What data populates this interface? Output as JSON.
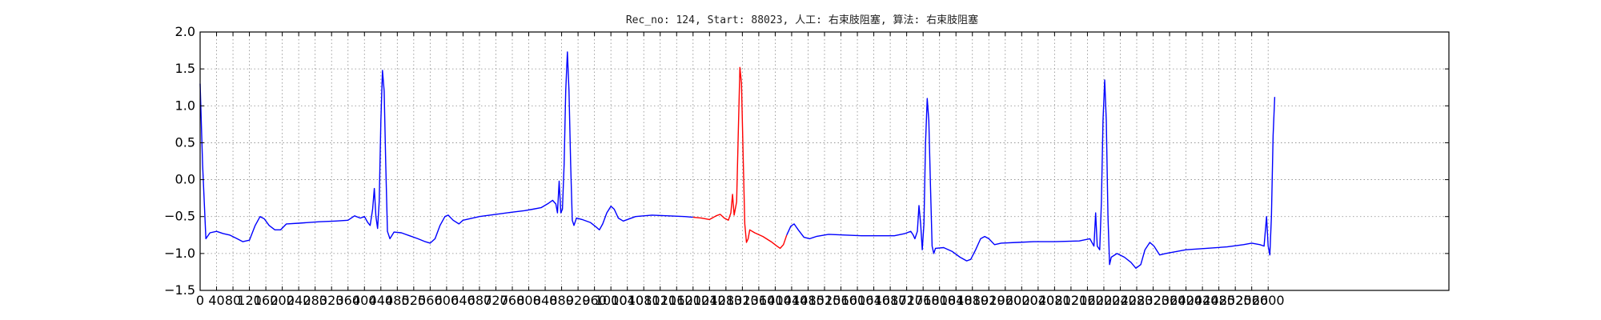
{
  "chart_data": {
    "type": "line",
    "title": "Rec_no: 124, Start: 88023, 人工: 右束肢阻塞, 算法: 右束肢阻塞",
    "xlabel": "",
    "ylabel": "",
    "xlim": [
      0,
      3040
    ],
    "ylim": [
      -1.5,
      2.0
    ],
    "grid": true,
    "x_ticks": [
      0,
      40,
      80,
      120,
      160,
      200,
      240,
      280,
      320,
      360,
      400,
      440,
      480,
      520,
      560,
      600,
      640,
      680,
      720,
      760,
      800,
      840,
      880,
      920,
      960,
      1000,
      1040,
      1080,
      1120,
      1160,
      1200,
      1240,
      1280,
      1320,
      1360,
      1400,
      1440,
      1480,
      1520,
      1560,
      1600,
      1640,
      1680,
      1720,
      1760,
      1800,
      1840,
      1880,
      1920,
      1960,
      2000,
      2040,
      2080,
      2120,
      2160,
      2200,
      2240,
      2280,
      2320,
      2360,
      2400,
      2440,
      2480,
      2520,
      2560,
      2600
    ],
    "x_tick_labels": [
      "0",
      "40",
      "80",
      "120",
      "160",
      "200",
      "240",
      "280",
      "320",
      "360",
      "400",
      "440",
      "480",
      "520",
      "560",
      "600",
      "640",
      "680",
      "720",
      "760",
      "800",
      "840",
      "880",
      "920",
      "960",
      "1000",
      "1040",
      "1080",
      "1120",
      "1160",
      "1200",
      "1240",
      "1280",
      "1320",
      "1360",
      "1400",
      "1440",
      "1480",
      "1520",
      "1560",
      "1600",
      "1640",
      "1680",
      "1720",
      "1760",
      "1800",
      "1840",
      "1880",
      "1920",
      "1960",
      "2000",
      "2040",
      "2080",
      "2120",
      "2160",
      "2200",
      "2240",
      "2280",
      "2320",
      "2360",
      "2400",
      "2440",
      "2480",
      "2520",
      "2560",
      "2600"
    ],
    "y_ticks": [
      -1.5,
      -1.0,
      -0.5,
      0.0,
      0.5,
      1.0,
      1.5,
      2.0
    ],
    "y_tick_labels": [
      "−1.5",
      "−1.0",
      "−0.5",
      "0.0",
      "0.5",
      "1.0",
      "1.5",
      "2.0"
    ],
    "colors": {
      "main": "#0000ff",
      "highlight": "#ff0000",
      "grid": "#888888"
    },
    "series": [
      {
        "color": "#0000ff",
        "points": [
          [
            0,
            1.3
          ],
          [
            6,
            0.2
          ],
          [
            14,
            -0.8
          ],
          [
            24,
            -0.72
          ],
          [
            40,
            -0.7
          ],
          [
            56,
            -0.73
          ],
          [
            72,
            -0.75
          ],
          [
            90,
            -0.8
          ],
          [
            104,
            -0.84
          ],
          [
            120,
            -0.82
          ],
          [
            134,
            -0.62
          ],
          [
            146,
            -0.5
          ],
          [
            156,
            -0.53
          ],
          [
            168,
            -0.62
          ],
          [
            182,
            -0.68
          ],
          [
            196,
            -0.68
          ],
          [
            210,
            -0.6
          ],
          [
            240,
            -0.59
          ],
          [
            290,
            -0.57
          ],
          [
            330,
            -0.56
          ],
          [
            360,
            -0.55
          ],
          [
            376,
            -0.49
          ],
          [
            390,
            -0.52
          ],
          [
            400,
            -0.5
          ],
          [
            408,
            -0.58
          ],
          [
            414,
            -0.62
          ],
          [
            420,
            -0.4
          ],
          [
            424,
            -0.12
          ],
          [
            428,
            -0.5
          ],
          [
            432,
            -0.66
          ],
          [
            436,
            -0.3
          ],
          [
            440,
            0.8
          ],
          [
            444,
            1.48
          ],
          [
            448,
            1.2
          ],
          [
            452,
            0.2
          ],
          [
            456,
            -0.7
          ],
          [
            462,
            -0.8
          ],
          [
            472,
            -0.71
          ],
          [
            490,
            -0.72
          ],
          [
            510,
            -0.76
          ],
          [
            530,
            -0.8
          ],
          [
            548,
            -0.84
          ],
          [
            560,
            -0.86
          ],
          [
            572,
            -0.8
          ],
          [
            584,
            -0.62
          ],
          [
            596,
            -0.5
          ],
          [
            604,
            -0.48
          ],
          [
            616,
            -0.55
          ],
          [
            630,
            -0.6
          ],
          [
            640,
            -0.55
          ],
          [
            680,
            -0.5
          ],
          [
            720,
            -0.47
          ],
          [
            760,
            -0.44
          ],
          [
            790,
            -0.42
          ],
          [
            810,
            -0.4
          ],
          [
            830,
            -0.38
          ],
          [
            848,
            -0.32
          ],
          [
            858,
            -0.28
          ],
          [
            866,
            -0.33
          ],
          [
            870,
            -0.45
          ],
          [
            874,
            -0.02
          ],
          [
            878,
            -0.45
          ],
          [
            882,
            -0.4
          ],
          [
            886,
            0.2
          ],
          [
            890,
            1.2
          ],
          [
            894,
            1.73
          ],
          [
            898,
            1.2
          ],
          [
            902,
            0.2
          ],
          [
            906,
            -0.55
          ],
          [
            910,
            -0.62
          ],
          [
            916,
            -0.52
          ],
          [
            930,
            -0.54
          ],
          [
            950,
            -0.58
          ],
          [
            966,
            -0.65
          ],
          [
            972,
            -0.68
          ],
          [
            980,
            -0.6
          ],
          [
            990,
            -0.45
          ],
          [
            1000,
            -0.36
          ],
          [
            1008,
            -0.4
          ],
          [
            1018,
            -0.52
          ],
          [
            1030,
            -0.56
          ],
          [
            1060,
            -0.5
          ],
          [
            1100,
            -0.48
          ],
          [
            1140,
            -0.49
          ],
          [
            1180,
            -0.5
          ],
          [
            1200,
            -0.51
          ]
        ]
      },
      {
        "color": "#ff0000",
        "points": [
          [
            1200,
            -0.51
          ],
          [
            1220,
            -0.52
          ],
          [
            1240,
            -0.54
          ],
          [
            1256,
            -0.49
          ],
          [
            1266,
            -0.47
          ],
          [
            1276,
            -0.52
          ],
          [
            1286,
            -0.55
          ],
          [
            1292,
            -0.45
          ],
          [
            1296,
            -0.2
          ],
          [
            1300,
            -0.48
          ],
          [
            1306,
            -0.3
          ],
          [
            1310,
            0.6
          ],
          [
            1314,
            1.52
          ],
          [
            1318,
            1.3
          ],
          [
            1322,
            0.3
          ],
          [
            1326,
            -0.6
          ],
          [
            1330,
            -0.85
          ],
          [
            1334,
            -0.8
          ],
          [
            1338,
            -0.68
          ],
          [
            1350,
            -0.72
          ],
          [
            1370,
            -0.77
          ],
          [
            1390,
            -0.84
          ],
          [
            1404,
            -0.9
          ],
          [
            1412,
            -0.93
          ],
          [
            1420,
            -0.88
          ],
          [
            1428,
            -0.75
          ]
        ]
      },
      {
        "color": "#0000ff",
        "points": [
          [
            1428,
            -0.75
          ],
          [
            1438,
            -0.63
          ],
          [
            1446,
            -0.6
          ],
          [
            1456,
            -0.68
          ],
          [
            1470,
            -0.78
          ],
          [
            1484,
            -0.8
          ],
          [
            1500,
            -0.77
          ],
          [
            1530,
            -0.74
          ],
          [
            1570,
            -0.75
          ],
          [
            1610,
            -0.76
          ],
          [
            1650,
            -0.76
          ],
          [
            1690,
            -0.76
          ],
          [
            1716,
            -0.73
          ],
          [
            1730,
            -0.7
          ],
          [
            1736,
            -0.75
          ],
          [
            1740,
            -0.8
          ],
          [
            1746,
            -0.7
          ],
          [
            1750,
            -0.35
          ],
          [
            1754,
            -0.6
          ],
          [
            1758,
            -0.95
          ],
          [
            1762,
            -0.6
          ],
          [
            1766,
            0.5
          ],
          [
            1770,
            1.1
          ],
          [
            1774,
            0.8
          ],
          [
            1778,
            -0.1
          ],
          [
            1782,
            -0.9
          ],
          [
            1786,
            -1.0
          ],
          [
            1790,
            -0.93
          ],
          [
            1810,
            -0.92
          ],
          [
            1830,
            -0.97
          ],
          [
            1850,
            -1.05
          ],
          [
            1866,
            -1.1
          ],
          [
            1876,
            -1.08
          ],
          [
            1888,
            -0.95
          ],
          [
            1900,
            -0.8
          ],
          [
            1910,
            -0.77
          ],
          [
            1920,
            -0.8
          ],
          [
            1934,
            -0.88
          ],
          [
            1950,
            -0.86
          ],
          [
            1990,
            -0.85
          ],
          [
            2030,
            -0.84
          ],
          [
            2080,
            -0.84
          ],
          [
            2140,
            -0.83
          ],
          [
            2166,
            -0.8
          ],
          [
            2176,
            -0.9
          ],
          [
            2180,
            -0.45
          ],
          [
            2184,
            -0.9
          ],
          [
            2190,
            -0.95
          ],
          [
            2194,
            -0.3
          ],
          [
            2198,
            0.8
          ],
          [
            2202,
            1.35
          ],
          [
            2206,
            0.8
          ],
          [
            2210,
            -0.5
          ],
          [
            2214,
            -1.15
          ],
          [
            2218,
            -1.05
          ],
          [
            2232,
            -1.0
          ],
          [
            2250,
            -1.05
          ],
          [
            2266,
            -1.12
          ],
          [
            2278,
            -1.2
          ],
          [
            2290,
            -1.15
          ],
          [
            2300,
            -0.95
          ],
          [
            2312,
            -0.85
          ],
          [
            2322,
            -0.9
          ],
          [
            2336,
            -1.02
          ],
          [
            2350,
            -1.0
          ],
          [
            2400,
            -0.95
          ],
          [
            2450,
            -0.93
          ],
          [
            2500,
            -0.91
          ],
          [
            2540,
            -0.88
          ],
          [
            2560,
            -0.86
          ],
          [
            2580,
            -0.88
          ],
          [
            2590,
            -0.9
          ],
          [
            2596,
            -0.5
          ],
          [
            2600,
            -0.9
          ],
          [
            2604,
            -1.02
          ],
          [
            2608,
            -0.5
          ],
          [
            2612,
            0.6
          ],
          [
            2616,
            1.12
          ]
        ]
      }
    ]
  }
}
